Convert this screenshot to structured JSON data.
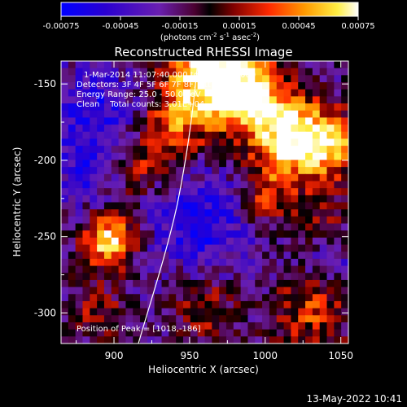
{
  "colorbar": {
    "ticks": [
      "-0.00075",
      "-0.00045",
      "-0.00015",
      "0.00015",
      "0.00045",
      "0.00075"
    ],
    "range": [
      -0.00075,
      0.00075
    ],
    "units_main": "(photons cm",
    "units_sup1": "-2",
    "units_mid1": " s",
    "units_sup2": "-1",
    "units_mid2": " asec",
    "units_sup3": "-2",
    "units_end": ")"
  },
  "chart_data": {
    "type": "heatmap",
    "title": "Reconstructed RHESSI Image",
    "xlabel": "Heliocentric X (arcsec)",
    "ylabel": "Heliocentric Y (arcsec)",
    "xlim": [
      865,
      1055
    ],
    "ylim": [
      -320,
      -135
    ],
    "xticks": [
      "900",
      "950",
      "1000",
      "1050"
    ],
    "yticks": [
      "-150",
      "-200",
      "-250",
      "-300"
    ],
    "colormap": "rainbow-blue-purple-red-yellow-white",
    "peak": [
      1018,
      -186
    ],
    "annotations": {
      "line1": "1-Mar-2014 11:07:40.000 to 11:13:40.000",
      "line2": "Detectors: 3F 4F 5F 6F 7F 8F, Att 0",
      "line3": "Energy Range: 25.0 - 50.0 keV",
      "line4": "Clean    Total counts: 3.01E+04",
      "peak_label": "Position of Peak = [1018,-186]"
    }
  },
  "footer": {
    "date": "13-May-2022 10:41"
  }
}
